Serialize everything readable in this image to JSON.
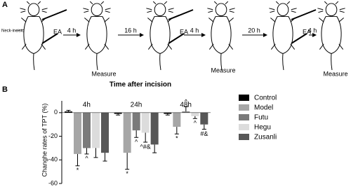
{
  "panel_a": {
    "label": "A",
    "neck_label": "Neck-incision",
    "ea_labels": [
      "EA",
      "EA",
      "EA"
    ],
    "intervals": [
      "4 h",
      "16 h",
      "4 h",
      "20 h",
      "4 h"
    ],
    "measure_labels": [
      "Measure",
      "Measure",
      "Measure"
    ]
  },
  "panel_b_label": "B",
  "chart_data": {
    "type": "bar",
    "title": "Time after incision",
    "y_label": "Changhe rates of TPT (%)",
    "categories": [
      "4h",
      "24h",
      "48h"
    ],
    "series": [
      {
        "name": "Control",
        "color": "#000000",
        "values": [
          1,
          -1,
          -1
        ],
        "errors": [
          1,
          1,
          1
        ],
        "markers": [
          null,
          null,
          null
        ]
      },
      {
        "name": "Model",
        "color": "#a6a6a6",
        "values": [
          -35,
          -34,
          -12
        ],
        "errors": [
          10,
          14,
          6
        ],
        "markers": [
          "*",
          "*",
          "*"
        ]
      },
      {
        "name": "Futu",
        "color": "#7a7a7a",
        "values": [
          -30,
          -15,
          1
        ],
        "errors": [
          5,
          6,
          4
        ],
        "markers": [
          "^",
          "^",
          "^"
        ]
      },
      {
        "name": "Hegu",
        "color": "#dcdcdc",
        "values": [
          -30,
          -17,
          -3
        ],
        "errors": [
          8,
          8,
          2
        ],
        "markers": [
          null,
          "^#&",
          "^"
        ]
      },
      {
        "name": "Zusanli",
        "color": "#575757",
        "values": [
          -34,
          -27,
          -10
        ],
        "errors": [
          7,
          7,
          4
        ],
        "markers": [
          null,
          null,
          "#&"
        ]
      }
    ],
    "ylim": [
      -60,
      10
    ],
    "yticks": [
      0,
      -20,
      -40,
      -60
    ]
  }
}
